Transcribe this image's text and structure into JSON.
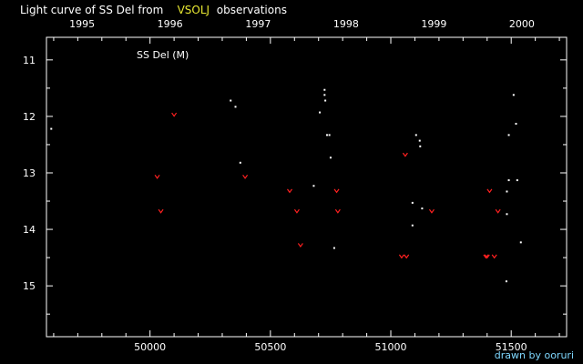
{
  "header": {
    "title_prefix": "Light curve of SS Del from",
    "title_source": "VSOLJ",
    "title_suffix": "observations"
  },
  "footer": {
    "credit": "drawn by ooruri"
  },
  "colors": {
    "background": "#000000",
    "visual": "#ffffff",
    "negative": "#ff2020",
    "source": "#e8e832",
    "credit": "#7fd8ff"
  },
  "chart_data": {
    "type": "scatter",
    "title": "Light curve of SS Del from VSOLJ observations",
    "panel_label": "SS Del (M)",
    "xlabel": "",
    "ylabel": "",
    "xlim": [
      49570,
      51730
    ],
    "ylim": [
      15.9,
      10.6
    ],
    "y_inverted": true,
    "grid": false,
    "x_ticks": [
      50000,
      50500,
      51000,
      51500
    ],
    "x_tick_labels": [
      "50000",
      "50500",
      "51000",
      "51500"
    ],
    "top_axis_ticks": [
      {
        "label": "1995",
        "jd": 49718
      },
      {
        "label": "1996",
        "jd": 50083
      },
      {
        "label": "1997",
        "jd": 50449
      },
      {
        "label": "1998",
        "jd": 50814
      },
      {
        "label": "1999",
        "jd": 51179
      },
      {
        "label": "2000",
        "jd": 51544
      }
    ],
    "y_ticks": [
      11,
      12,
      13,
      14,
      15
    ],
    "series": [
      {
        "marker": "dot",
        "color": "#ffffff",
        "points": [
          [
            49590,
            12.22
          ],
          [
            50335,
            11.72
          ],
          [
            50355,
            11.83
          ],
          [
            50375,
            12.82
          ],
          [
            50680,
            13.23
          ],
          [
            50705,
            11.93
          ],
          [
            50725,
            11.53
          ],
          [
            50725,
            11.62
          ],
          [
            50728,
            11.72
          ],
          [
            50735,
            12.33
          ],
          [
            50745,
            12.33
          ],
          [
            50750,
            12.73
          ],
          [
            50765,
            14.33
          ],
          [
            51090,
            13.53
          ],
          [
            51090,
            13.93
          ],
          [
            51105,
            12.33
          ],
          [
            51120,
            12.43
          ],
          [
            51122,
            12.53
          ],
          [
            51130,
            13.63
          ],
          [
            51480,
            14.92
          ],
          [
            51482,
            13.33
          ],
          [
            51482,
            13.73
          ],
          [
            51490,
            12.33
          ],
          [
            51490,
            13.13
          ],
          [
            51510,
            11.62
          ],
          [
            51520,
            12.13
          ],
          [
            51525,
            13.13
          ],
          [
            51540,
            14.23
          ]
        ]
      },
      {
        "marker": "v",
        "color": "#ff2020",
        "points": [
          [
            50030,
            13.07
          ],
          [
            50045,
            13.68
          ],
          [
            50100,
            11.97
          ],
          [
            50395,
            13.07
          ],
          [
            50580,
            13.32
          ],
          [
            50610,
            13.68
          ],
          [
            50625,
            14.28
          ],
          [
            50775,
            13.32
          ],
          [
            50780,
            13.68
          ],
          [
            51045,
            14.48
          ],
          [
            51060,
            12.68
          ],
          [
            51065,
            14.48
          ],
          [
            51170,
            13.68
          ],
          [
            51395,
            14.48
          ],
          [
            51400,
            14.48
          ],
          [
            51410,
            13.32
          ],
          [
            51430,
            14.48
          ],
          [
            51445,
            13.68
          ]
        ]
      }
    ]
  }
}
